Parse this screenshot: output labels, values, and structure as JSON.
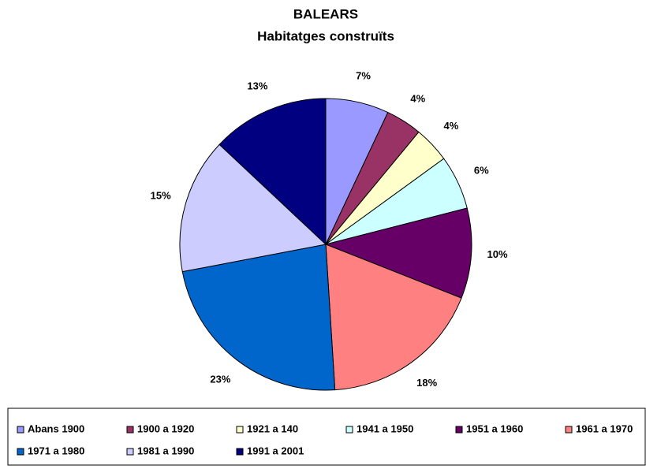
{
  "chart_data": {
    "type": "pie",
    "title": "BALEARS",
    "subtitle": "Habitatges construïts",
    "categories": [
      "Abans 1900",
      "1900 a 1920",
      "1921 a 140",
      "1941 a 1950",
      "1951 a 1960",
      "1961 a 1970",
      "1971 a 1980",
      "1981 a 1990",
      "1991 a 2001"
    ],
    "values": [
      7,
      4,
      4,
      6,
      10,
      18,
      23,
      15,
      13
    ],
    "value_labels": [
      "7%",
      "4%",
      "4%",
      "6%",
      "10%",
      "18%",
      "23%",
      "15%",
      "13%"
    ],
    "colors": [
      "#9999ff",
      "#993366",
      "#ffffcc",
      "#ccffff",
      "#660066",
      "#ff8080",
      "#0066cc",
      "#ccccff",
      "#000080"
    ],
    "legend": "bottom"
  }
}
